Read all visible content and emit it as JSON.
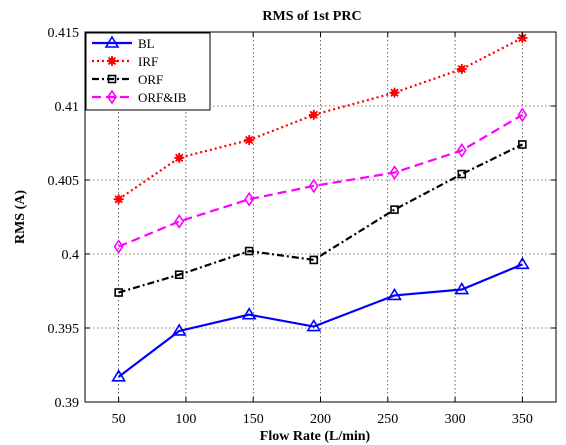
{
  "chart_data": {
    "type": "line",
    "title": "RMS of 1st PRC",
    "xlabel": "Flow Rate (L/min)",
    "ylabel": "RMS (A)",
    "xlim": [
      25,
      375
    ],
    "ylim": [
      0.39,
      0.415
    ],
    "xticks": [
      50,
      100,
      150,
      200,
      250,
      300,
      350
    ],
    "yticks": [
      0.39,
      0.395,
      0.4,
      0.405,
      0.41,
      0.415
    ],
    "ytick_labels": [
      "0.39",
      "0.395",
      "0.4",
      "0.405",
      "0.41",
      "0.415"
    ],
    "grid": true,
    "legend_position": "top-left",
    "series": [
      {
        "name": "BL",
        "color": "#0000ff",
        "marker": "triangle",
        "dash": "solid",
        "x": [
          50,
          95,
          147,
          195,
          255,
          305,
          350
        ],
        "y": [
          0.3917,
          0.3948,
          0.3959,
          0.3951,
          0.3972,
          0.3976,
          0.3993
        ]
      },
      {
        "name": "IRF",
        "color": "#ff0000",
        "marker": "star",
        "dash": "dotted",
        "x": [
          50,
          95,
          147,
          195,
          255,
          305,
          350
        ],
        "y": [
          0.4037,
          0.4065,
          0.4077,
          0.4094,
          0.4109,
          0.4125,
          0.4146
        ]
      },
      {
        "name": "ORF",
        "color": "#000000",
        "marker": "square",
        "dash": "dashdot",
        "x": [
          50,
          95,
          147,
          195,
          255,
          305,
          350
        ],
        "y": [
          0.3974,
          0.3986,
          0.4002,
          0.3996,
          0.403,
          0.4054,
          0.4074
        ]
      },
      {
        "name": "ORF&IB",
        "color": "#ff00ff",
        "marker": "diamond",
        "dash": "dashed",
        "x": [
          50,
          95,
          147,
          195,
          255,
          305,
          350
        ],
        "y": [
          0.4005,
          0.4022,
          0.4037,
          0.4046,
          0.4055,
          0.407,
          0.4094
        ]
      }
    ]
  }
}
